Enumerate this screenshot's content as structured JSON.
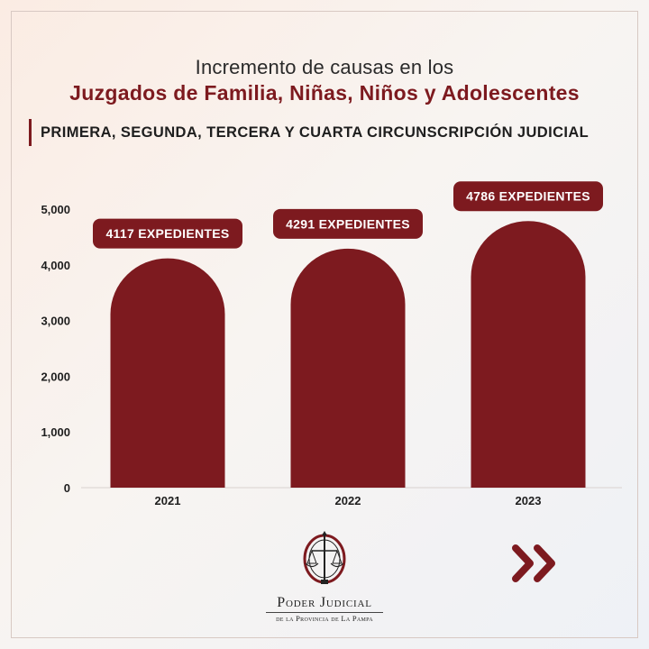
{
  "header": {
    "title_line1": "Incremento de causas en los",
    "title_line2": "Juzgados de Familia, Niñas, Niños y Adolescentes",
    "subtitle": "PRIMERA, SEGUNDA, TERCERA Y CUARTA CIRCUNSCRIPCIÓN JUDICIAL"
  },
  "chart_data": {
    "type": "bar",
    "categories": [
      "2021",
      "2022",
      "2023"
    ],
    "values": [
      4117,
      4291,
      4786
    ],
    "data_labels": [
      "4117 EXPEDIENTES",
      "4291 EXPEDIENTES",
      "4786 EXPEDIENTES"
    ],
    "ylim": [
      0,
      5000
    ],
    "yticks": [
      0,
      1000,
      2000,
      3000,
      4000,
      5000
    ],
    "ytick_labels": [
      "0",
      "1,000",
      "2,000",
      "3,000",
      "4,000",
      "5,000"
    ],
    "title": "",
    "xlabel": "",
    "ylabel": "",
    "grid": false,
    "bar_shape": "rounded-top",
    "bar_color": "#7d1a1f"
  },
  "footer": {
    "brand_name": "Poder Judicial",
    "brand_sub": "de la Provincia de La Pampa",
    "logo_icon": "scales-of-justice-icon",
    "next_icon": "double-chevron-right-icon"
  },
  "colors": {
    "accent": "#7d1a1f",
    "text": "#1e1e1e"
  }
}
